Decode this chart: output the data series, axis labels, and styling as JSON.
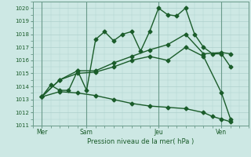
{
  "title": "Pression niveau de la mer( hPa )",
  "background_color": "#cde8e4",
  "grid_color": "#aed0cc",
  "line_color": "#1a5c2a",
  "spine_color": "#6a9a8a",
  "ylim": [
    1011,
    1020.5
  ],
  "xlim": [
    0,
    12
  ],
  "yticks": [
    1011,
    1012,
    1013,
    1014,
    1015,
    1016,
    1017,
    1018,
    1019,
    1020
  ],
  "day_labels": [
    "Mer",
    "Sam",
    "Jeu",
    "Ven"
  ],
  "day_positions": [
    0.5,
    3.0,
    7.0,
    10.5
  ],
  "vline_positions": [
    0.5,
    3.0,
    7.0,
    10.5
  ],
  "series": [
    {
      "x": [
        0.5,
        1.0,
        1.5,
        2.0,
        2.5,
        3.0,
        3.5,
        4.0,
        4.5,
        5.0,
        5.5,
        6.0,
        6.5,
        7.0,
        7.5,
        8.0,
        8.5,
        9.0,
        9.5,
        10.0,
        10.5,
        11.0
      ],
      "y": [
        1013.2,
        1014.1,
        1013.7,
        1013.7,
        1015.2,
        1013.7,
        1017.6,
        1018.2,
        1017.5,
        1018.0,
        1018.2,
        1016.7,
        1018.2,
        1020.0,
        1019.5,
        1019.4,
        1020.0,
        1018.0,
        1017.0,
        1016.5,
        1016.5,
        1015.5
      ]
    },
    {
      "x": [
        0.5,
        1.5,
        2.5,
        3.5,
        4.5,
        5.5,
        6.5,
        7.5,
        8.5,
        9.5,
        10.5,
        11.0
      ],
      "y": [
        1013.2,
        1014.5,
        1015.2,
        1015.2,
        1015.8,
        1016.3,
        1016.8,
        1017.2,
        1018.0,
        1016.5,
        1016.6,
        1016.5
      ]
    },
    {
      "x": [
        0.5,
        1.5,
        2.5,
        3.5,
        4.5,
        5.5,
        6.5,
        7.5,
        8.5,
        9.5,
        10.5,
        11.0
      ],
      "y": [
        1013.2,
        1014.5,
        1015.0,
        1015.1,
        1015.5,
        1016.0,
        1016.3,
        1016.0,
        1017.0,
        1016.3,
        1013.5,
        1011.5
      ]
    },
    {
      "x": [
        0.5,
        1.5,
        2.5,
        3.5,
        4.5,
        5.5,
        6.5,
        7.5,
        8.5,
        9.5,
        10.0,
        10.5,
        11.0
      ],
      "y": [
        1013.2,
        1013.6,
        1013.5,
        1013.3,
        1013.0,
        1012.7,
        1012.5,
        1012.4,
        1012.3,
        1012.0,
        1011.7,
        1011.5,
        1011.3
      ]
    }
  ],
  "marker": "D",
  "markersize": 2.5,
  "linewidth": 1.0
}
